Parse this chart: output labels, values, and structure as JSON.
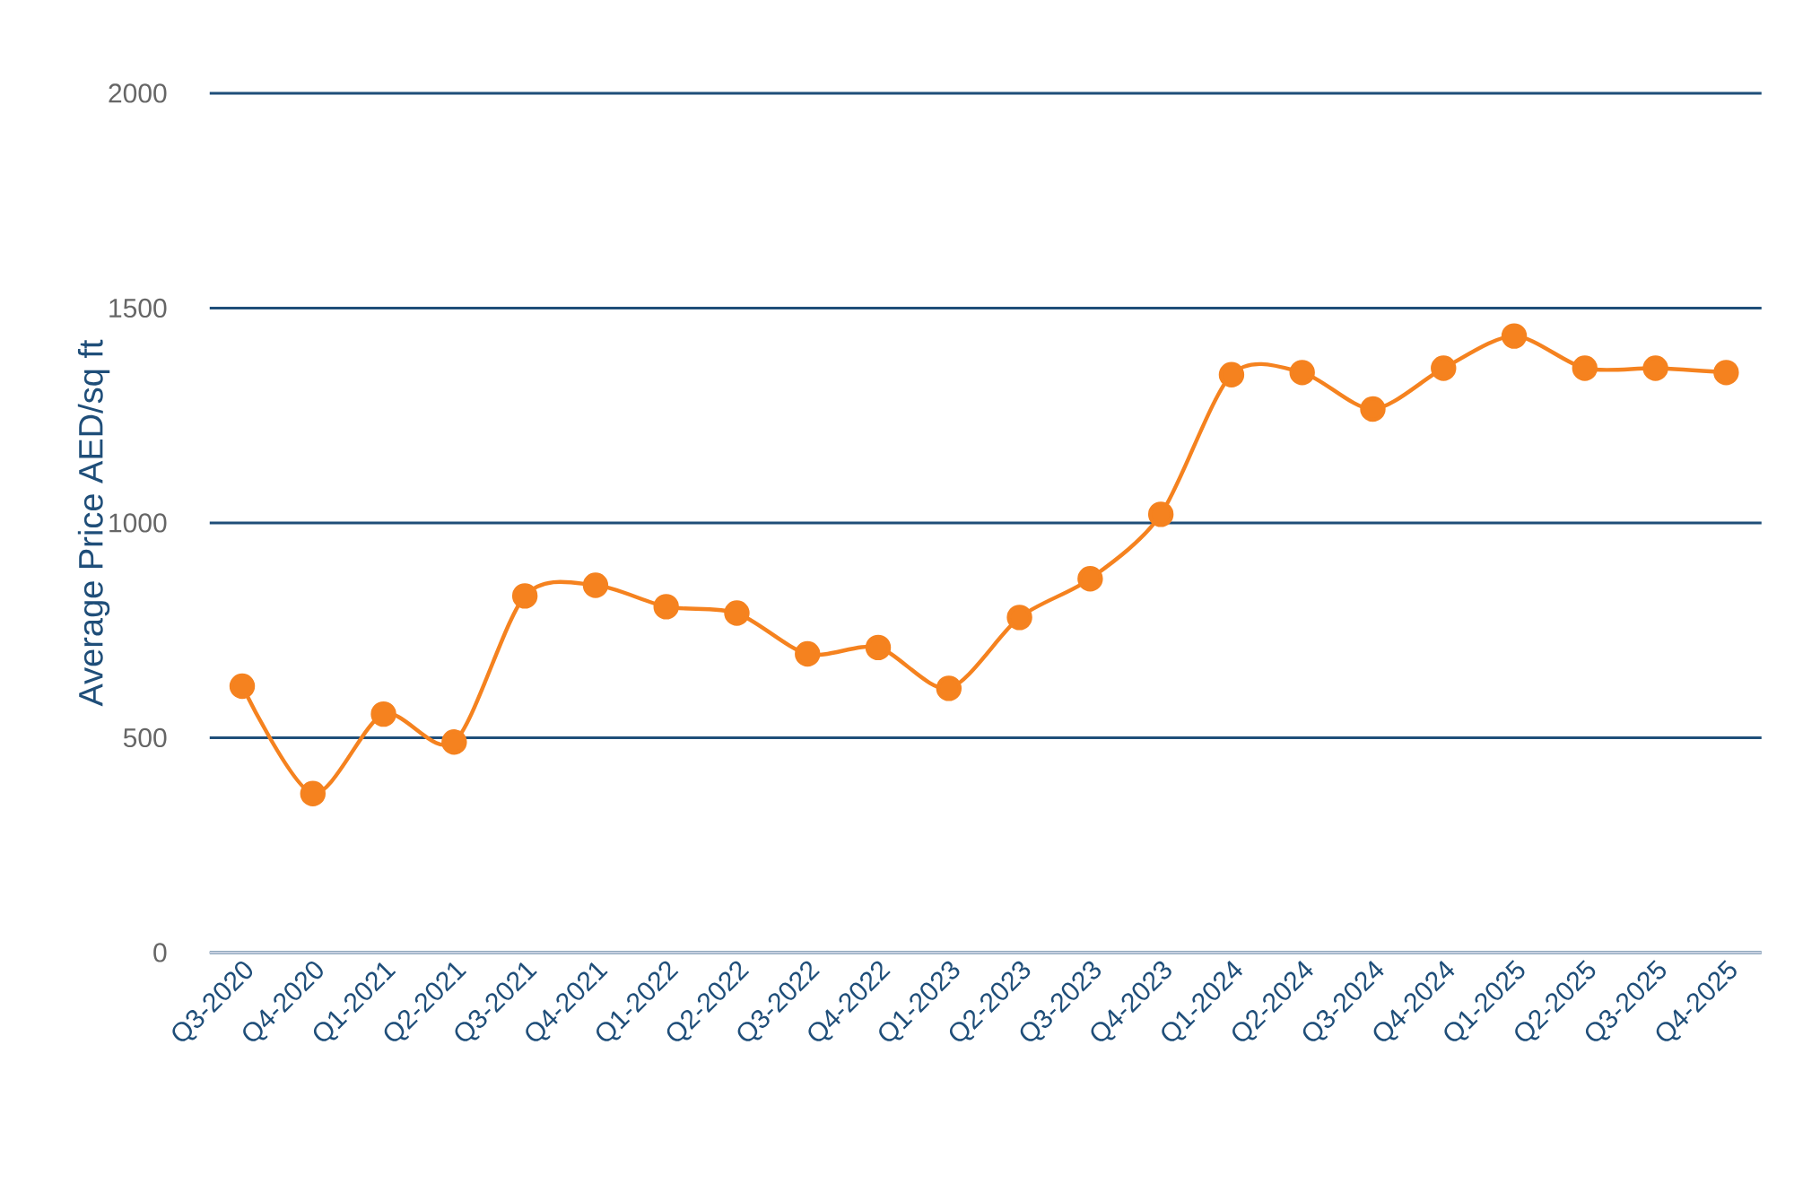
{
  "chart_data": {
    "type": "line",
    "ylabel": "Average Price AED/sq ft",
    "categories": [
      "Q3-2020",
      "Q4-2020",
      "Q1-2021",
      "Q2-2021",
      "Q3-2021",
      "Q4-2021",
      "Q1-2022",
      "Q2-2022",
      "Q3-2022",
      "Q4-2022",
      "Q1-2023",
      "Q2-2023",
      "Q3-2023",
      "Q4-2023",
      "Q1-2024",
      "Q2-2024",
      "Q3-2024",
      "Q4-2024",
      "Q1-2025",
      "Q2-2025",
      "Q3-2025",
      "Q4-2025"
    ],
    "values": [
      620,
      370,
      555,
      490,
      830,
      855,
      805,
      790,
      695,
      710,
      615,
      780,
      870,
      1020,
      1345,
      1350,
      1265,
      1360,
      1435,
      1360,
      1360,
      1350
    ],
    "color": "#f5821f",
    "ylim": [
      0,
      2000
    ],
    "yticks": [
      0,
      500,
      1000,
      1500,
      2000
    ],
    "grid": "y",
    "marker": "circle",
    "line_style": "solid"
  }
}
